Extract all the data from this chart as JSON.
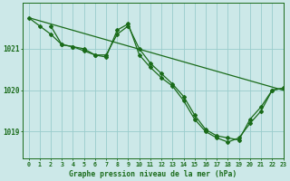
{
  "title": "Graphe pression niveau de la mer (hPa)",
  "bg_color": "#cce8e8",
  "grid_color": "#99cccc",
  "line_color": "#1a6b1a",
  "marker_color": "#1a6b1a",
  "xlim": [
    -0.5,
    23
  ],
  "ylim": [
    1018.35,
    1022.1
  ],
  "yticks": [
    1019,
    1020,
    1021
  ],
  "xticks": [
    0,
    1,
    2,
    3,
    4,
    5,
    6,
    7,
    8,
    9,
    10,
    11,
    12,
    13,
    14,
    15,
    16,
    17,
    18,
    19,
    20,
    21,
    22,
    23
  ],
  "line1_x": [
    0,
    23
  ],
  "line1_y": [
    1021.75,
    1020.0
  ],
  "line2_x": [
    0,
    1,
    2,
    3,
    4,
    5,
    6,
    7,
    8,
    9,
    10,
    11,
    12,
    13,
    14,
    15,
    16,
    17,
    18,
    19,
    20,
    21,
    22,
    23
  ],
  "line2_y": [
    1021.75,
    1021.55,
    1021.35,
    1021.1,
    1021.05,
    1021.0,
    1020.85,
    1020.85,
    1021.35,
    1021.55,
    1021.0,
    1020.65,
    1020.4,
    1020.15,
    1019.85,
    1019.4,
    1019.05,
    1018.9,
    1018.85,
    1018.8,
    1019.3,
    1019.6,
    1020.0,
    1020.05
  ],
  "line3_x": [
    2,
    3,
    4,
    5,
    6,
    7,
    8,
    9,
    10,
    11,
    12,
    13,
    14,
    15,
    16,
    17,
    18,
    19,
    20,
    21,
    22,
    23
  ],
  "line3_y": [
    1021.55,
    1021.1,
    1021.05,
    1020.95,
    1020.85,
    1020.8,
    1021.45,
    1021.6,
    1020.85,
    1020.55,
    1020.3,
    1020.1,
    1019.75,
    1019.3,
    1019.0,
    1018.85,
    1018.75,
    1018.85,
    1019.2,
    1019.5,
    1020.0,
    1020.05
  ]
}
